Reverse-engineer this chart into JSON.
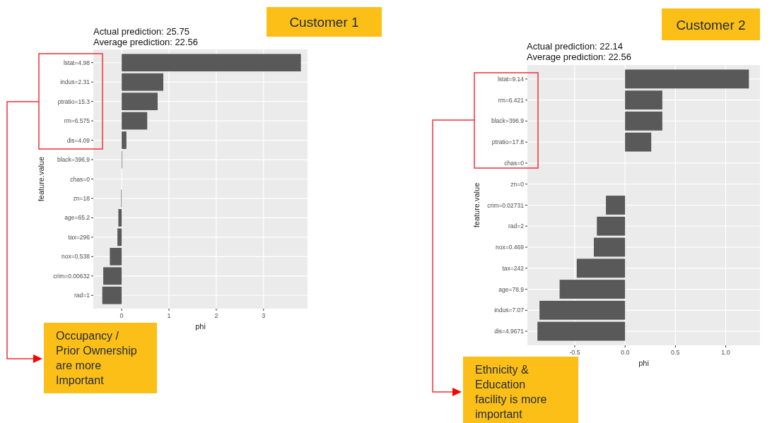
{
  "chart_data": [
    {
      "type": "bar",
      "orientation": "horizontal",
      "title": "Customer  1",
      "subtitle": "Actual prediction: 25.75\nAverage prediction: 22.56",
      "xlabel": "phi",
      "ylabel": "feature.value",
      "categories": [
        "lstat=4.98",
        "indus=2.31",
        "ptratio=15.3",
        "rm=6.575",
        "dis=4.09",
        "black=396.9",
        "chas=0",
        "zn=18",
        "age=65.2",
        "tax=296",
        "nox=0.538",
        "crim=0.00632",
        "rad=1"
      ],
      "values": [
        3.79,
        0.88,
        0.76,
        0.54,
        0.1,
        0.01,
        0,
        -0.01,
        -0.07,
        -0.09,
        -0.25,
        -0.39,
        -0.41
      ],
      "color": "#595959",
      "xlim": [
        -0.6,
        3.93
      ],
      "xticks": [
        0,
        1,
        2,
        3
      ],
      "grid": true,
      "annotations": [
        "Occupancy /\nPrior Ownership\nare more\nImportant"
      ]
    },
    {
      "type": "bar",
      "orientation": "horizontal",
      "title": "Customer  2",
      "subtitle": "Actual prediction: 22.14\nAverage prediction: 22.56",
      "xlabel": "phi",
      "ylabel": "feature.value",
      "categories": [
        "lstat=9.14",
        "rm=6.421",
        "black=396.9",
        "ptratio=17.8",
        "chas=0",
        "zn=0",
        "crim=0.02731",
        "rad=2",
        "nox=0.469",
        "tax=242",
        "age=78.9",
        "indus=7.07",
        "dis=4.9671"
      ],
      "values": [
        1.23,
        0.37,
        0.37,
        0.26,
        0,
        0,
        -0.19,
        -0.28,
        -0.31,
        -0.48,
        -0.65,
        -0.85,
        -0.87
      ],
      "color": "#595959",
      "xlim": [
        -0.97,
        1.34
      ],
      "xticks": [
        -0.5,
        {
          "value": 0,
          "label": "0.0"
        },
        0.5,
        {
          "value": 1,
          "label": "1.0"
        }
      ],
      "grid": true,
      "annotations": [
        "Ethnicity &\nEducation\nfacility is more\nimportant"
      ]
    }
  ]
}
